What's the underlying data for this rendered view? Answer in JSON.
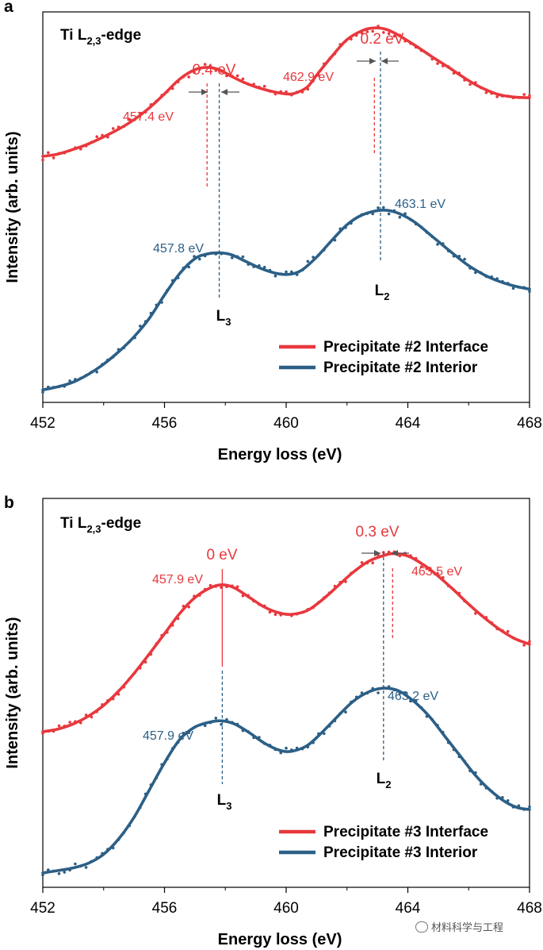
{
  "figure": {
    "colors": {
      "interface": "#e8383d",
      "interior": "#2c5f86",
      "axis": "#000000",
      "arrow": "#555555"
    },
    "watermark": "材料科学与工程"
  },
  "chart_data": [
    {
      "type": "line",
      "panel_label": "a",
      "edge_label": {
        "main": "Ti L",
        "sub": "2,3",
        "suffix": "-edge"
      },
      "xlabel": "Energy loss (eV)",
      "ylabel": "Intensity (arb. units)",
      "xlim": [
        452,
        468
      ],
      "ylim": [
        0,
        1
      ],
      "xticks": [
        452,
        456,
        460,
        464,
        468
      ],
      "legend": {
        "position": "bottom-right"
      },
      "series": [
        {
          "name": "Precipitate #2 Interface",
          "key": "interface",
          "x": [
            452,
            452.5,
            453,
            453.5,
            454,
            454.5,
            455,
            455.5,
            456,
            456.5,
            457,
            457.4,
            457.8,
            458.2,
            458.6,
            459,
            459.5,
            460,
            460.3,
            460.7,
            461,
            461.5,
            462,
            462.5,
            462.9,
            463.3,
            463.7,
            464.2,
            464.8,
            465.3,
            466,
            466.5,
            467,
            467.5,
            468
          ],
          "y": [
            0.63,
            0.636,
            0.648,
            0.662,
            0.68,
            0.7,
            0.724,
            0.754,
            0.79,
            0.828,
            0.852,
            0.858,
            0.852,
            0.835,
            0.82,
            0.808,
            0.797,
            0.79,
            0.792,
            0.808,
            0.838,
            0.886,
            0.929,
            0.952,
            0.959,
            0.955,
            0.94,
            0.916,
            0.885,
            0.86,
            0.824,
            0.803,
            0.788,
            0.782,
            0.78
          ]
        },
        {
          "name": "Precipitate #2 Interior",
          "key": "interior",
          "x": [
            452,
            452.5,
            453,
            453.5,
            454,
            454.5,
            455,
            455.5,
            456,
            456.5,
            457,
            457.4,
            457.8,
            458.2,
            458.7,
            459.2,
            459.7,
            460.1,
            460.5,
            461,
            461.5,
            462,
            462.5,
            463.1,
            463.6,
            464.2,
            464.8,
            465.5,
            466,
            466.5,
            467,
            467.5,
            468
          ],
          "y": [
            0.032,
            0.04,
            0.052,
            0.072,
            0.098,
            0.13,
            0.168,
            0.215,
            0.275,
            0.33,
            0.368,
            0.38,
            0.383,
            0.378,
            0.36,
            0.342,
            0.33,
            0.328,
            0.338,
            0.372,
            0.415,
            0.455,
            0.48,
            0.492,
            0.487,
            0.463,
            0.425,
            0.38,
            0.35,
            0.327,
            0.31,
            0.298,
            0.29
          ]
        }
      ],
      "annotations": {
        "interface_peak_labels": [
          "457.4 eV",
          "462.9 eV"
        ],
        "interior_peak_labels": [
          "457.8 eV",
          "463.1 eV"
        ],
        "shift_labels": [
          "0.4 eV",
          "0.2 eV"
        ],
        "edge_labels": [
          {
            "main": "L",
            "sub": "3"
          },
          {
            "main": "L",
            "sub": "2"
          }
        ]
      }
    },
    {
      "type": "line",
      "panel_label": "b",
      "edge_label": {
        "main": "Ti L",
        "sub": "2,3",
        "suffix": "-edge"
      },
      "xlabel": "Energy loss (eV)",
      "ylabel": "Intensity (arb. units)",
      "xlim": [
        452,
        468
      ],
      "ylim": [
        0,
        1
      ],
      "xticks": [
        452,
        456,
        460,
        464,
        468
      ],
      "legend": {
        "position": "bottom-right"
      },
      "series": [
        {
          "name": "Precipitate #3 Interface",
          "key": "interface",
          "x": [
            452,
            452.5,
            453,
            453.5,
            454,
            454.5,
            455,
            455.5,
            456,
            456.5,
            457,
            457.5,
            457.9,
            458.3,
            458.8,
            459.3,
            459.8,
            460.2,
            460.7,
            461.2,
            461.7,
            462.2,
            462.7,
            463.2,
            463.5,
            464,
            464.5,
            465,
            465.5,
            466,
            466.5,
            467,
            467.5,
            468
          ],
          "y": [
            0.4,
            0.407,
            0.42,
            0.44,
            0.468,
            0.505,
            0.55,
            0.6,
            0.652,
            0.704,
            0.745,
            0.77,
            0.778,
            0.77,
            0.745,
            0.72,
            0.705,
            0.702,
            0.712,
            0.74,
            0.775,
            0.81,
            0.838,
            0.853,
            0.858,
            0.852,
            0.83,
            0.8,
            0.765,
            0.728,
            0.694,
            0.664,
            0.64,
            0.625
          ]
        },
        {
          "name": "Precipitate #3 Interior",
          "key": "interior",
          "x": [
            452,
            452.5,
            453,
            453.5,
            454,
            454.5,
            455,
            455.5,
            456,
            456.5,
            457,
            457.5,
            457.9,
            458.3,
            458.8,
            459.3,
            459.8,
            460.2,
            460.7,
            461.2,
            461.7,
            462.2,
            462.7,
            463.2,
            463.7,
            464.2,
            464.7,
            465.2,
            465.7,
            466.2,
            466.7,
            467.2,
            467.6,
            468
          ],
          "y": [
            0.037,
            0.043,
            0.05,
            0.062,
            0.085,
            0.125,
            0.18,
            0.25,
            0.32,
            0.38,
            0.412,
            0.425,
            0.428,
            0.42,
            0.397,
            0.37,
            0.352,
            0.35,
            0.365,
            0.4,
            0.44,
            0.478,
            0.502,
            0.512,
            0.505,
            0.478,
            0.44,
            0.39,
            0.34,
            0.29,
            0.25,
            0.22,
            0.205,
            0.2
          ]
        }
      ],
      "annotations": {
        "interface_peak_labels": [
          "457.9 eV",
          "463.5 eV"
        ],
        "interior_peak_labels": [
          "457.9 eV",
          "463.2 eV"
        ],
        "shift_labels": [
          "0 eV",
          "0.3 eV"
        ],
        "edge_labels": [
          {
            "main": "L",
            "sub": "3"
          },
          {
            "main": "L",
            "sub": "2"
          }
        ]
      }
    }
  ]
}
